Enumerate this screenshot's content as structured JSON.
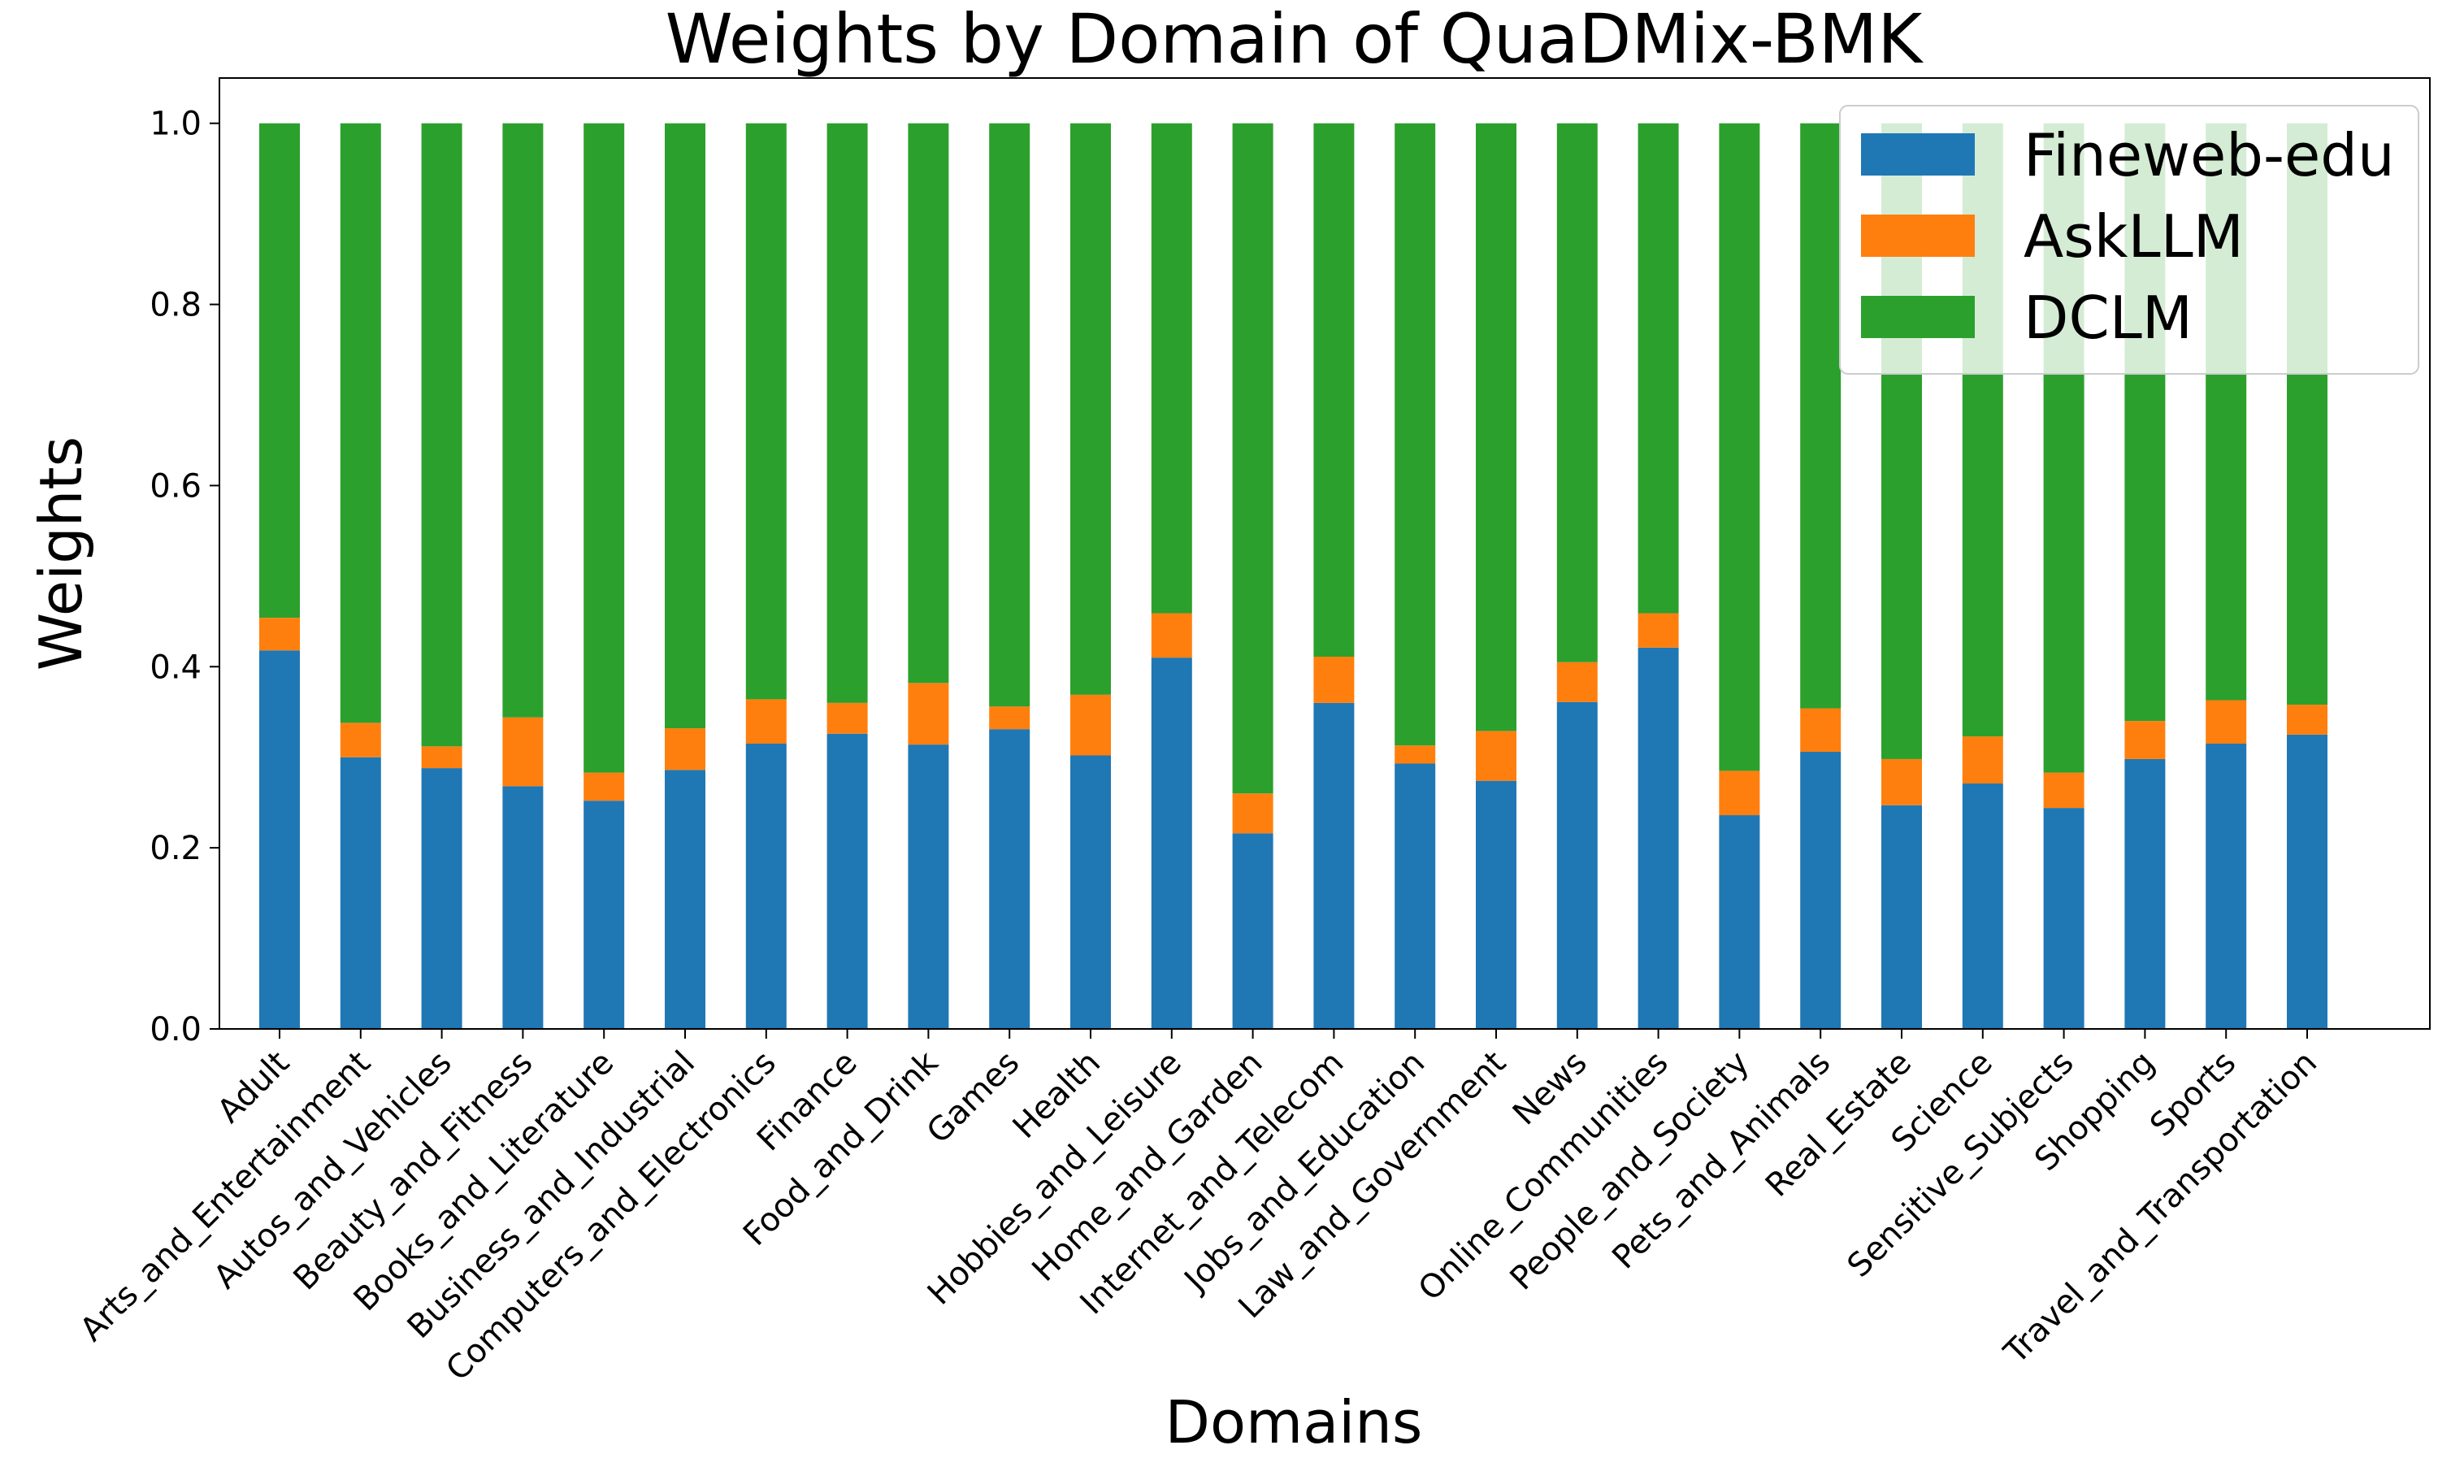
{
  "chart_data": {
    "type": "bar",
    "stacked": true,
    "title": "Weights by Domain of QuaDMix-BMK",
    "xlabel": "Domains",
    "ylabel": "Weights",
    "ylim": [
      0,
      1.05
    ],
    "yticks": [
      "0.0",
      "0.2",
      "0.4",
      "0.6",
      "0.8",
      "1.0"
    ],
    "grid": false,
    "legend_position": "top-right",
    "categories": [
      "Adult",
      "Arts_and_Entertainment",
      "Autos_and_Vehicles",
      "Beauty_and_Fitness",
      "Books_and_Literature",
      "Business_and_Industrial",
      "Computers_and_Electronics",
      "Finance",
      "Food_and_Drink",
      "Games",
      "Health",
      "Hobbies_and_Leisure",
      "Home_and_Garden",
      "Internet_and_Telecom",
      "Jobs_and_Education",
      "Law_and_Government",
      "News",
      "Online_Communities",
      "People_and_Society",
      "Pets_and_Animals",
      "Real_Estate",
      "Science",
      "Sensitive_Subjects",
      "Shopping",
      "Sports",
      "Travel_and_Transportation"
    ],
    "series": [
      {
        "name": "Fineweb-edu",
        "color": "#1f77b4",
        "values": [
          0.418,
          0.3,
          0.288,
          0.268,
          0.252,
          0.286,
          0.315,
          0.326,
          0.314,
          0.331,
          0.302,
          0.41,
          0.216,
          0.36,
          0.293,
          0.274,
          0.361,
          0.421,
          0.236,
          0.306,
          0.247,
          0.271,
          0.244,
          0.298,
          0.315,
          0.325
        ]
      },
      {
        "name": "AskLLM",
        "color": "#ff7f0e",
        "values": [
          0.036,
          0.038,
          0.024,
          0.076,
          0.031,
          0.046,
          0.049,
          0.034,
          0.068,
          0.025,
          0.067,
          0.049,
          0.044,
          0.051,
          0.02,
          0.055,
          0.044,
          0.038,
          0.049,
          0.048,
          0.051,
          0.052,
          0.039,
          0.042,
          0.048,
          0.033
        ]
      },
      {
        "name": "DCLM",
        "color": "#2ca02c",
        "values": [
          0.546,
          0.662,
          0.688,
          0.656,
          0.717,
          0.668,
          0.636,
          0.64,
          0.618,
          0.644,
          0.631,
          0.541,
          0.74,
          0.589,
          0.687,
          0.671,
          0.595,
          0.541,
          0.715,
          0.646,
          0.702,
          0.677,
          0.717,
          0.66,
          0.637,
          0.642
        ]
      }
    ]
  }
}
